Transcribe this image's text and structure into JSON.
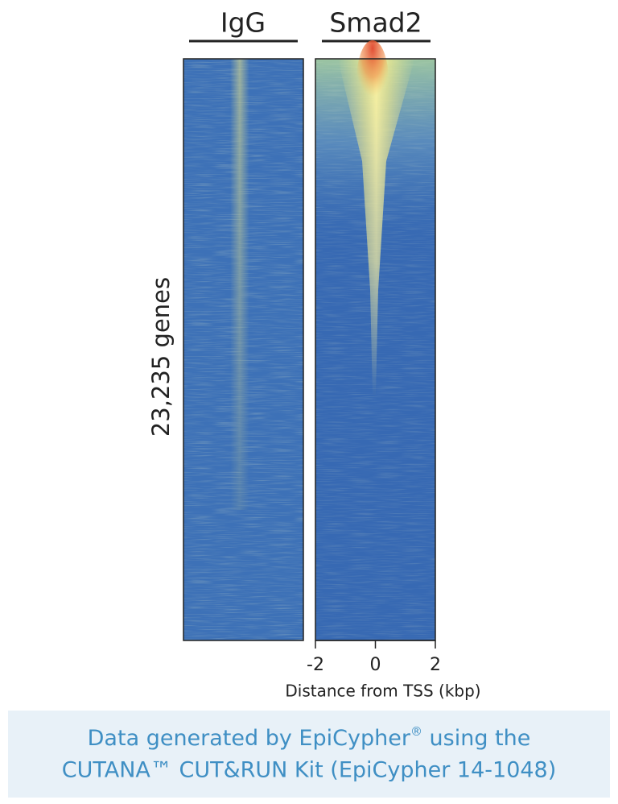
{
  "chart_data": {
    "type": "heatmap",
    "panels": [
      {
        "title": "IgG"
      },
      {
        "title": "Smad2"
      }
    ],
    "ylabel": "23,235 genes",
    "xlabel": "Distance from TSS (kbp)",
    "xlim": [
      -2,
      2
    ],
    "xticks": [
      -2,
      0,
      2
    ]
  },
  "footer": {
    "line1": [
      "Data generated by EpiCypher",
      "®",
      " using the"
    ],
    "line2": "CUTANA™ CUT&RUN Kit (EpiCypher 14-1048)"
  }
}
